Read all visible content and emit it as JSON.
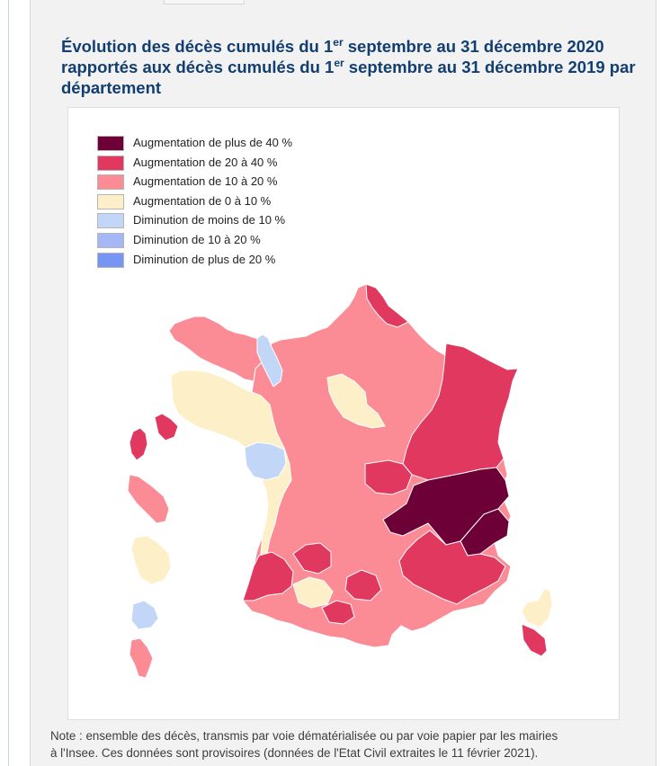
{
  "title": {
    "line1_a": "Évolution des décès cumulés du 1",
    "line1_sup": "er",
    "line1_b": " septembre au 31 décembre 2020",
    "line2_a": "rapportés aux décès cumulés du 1",
    "line2_sup": "er",
    "line2_b": " septembre au 31 décembre 2019 par",
    "line3": "département"
  },
  "legend": [
    {
      "label": "Augmentation de plus de 40 %",
      "color": "#6e0038"
    },
    {
      "label": "Augmentation de 20 à 40 %",
      "color": "#e0385f"
    },
    {
      "label": "Augmentation de 10 à 20 %",
      "color": "#fb8b95"
    },
    {
      "label": "Augmentation de 0 à 10 %",
      "color": "#fdf0c8"
    },
    {
      "label": "Diminution de moins de 10 %",
      "color": "#c2d6f8"
    },
    {
      "label": "Diminution de 10 à 20 %",
      "color": "#a6b7f5"
    },
    {
      "label": "Diminution de plus de 20 %",
      "color": "#7795f3"
    }
  ],
  "regions": [
    {
      "name": "metropole",
      "class": 2
    },
    {
      "name": "hauts-de-france-nord",
      "class": 1
    },
    {
      "name": "grand-est-est",
      "class": 1
    },
    {
      "name": "bourgogne-franche-comte",
      "class": 1
    },
    {
      "name": "auvergne-rhone-alpes-sillon",
      "class": 0
    },
    {
      "name": "alpes-nord",
      "class": 0
    },
    {
      "name": "ouest-atlantique",
      "class": 3
    },
    {
      "name": "centre-val-de-loire",
      "class": 3
    },
    {
      "name": "manche",
      "class": 4
    },
    {
      "name": "loire-atlantique",
      "class": 4
    },
    {
      "name": "pyrenees-atlantiques",
      "class": 1
    },
    {
      "name": "occitanie-ouest",
      "class": 1
    },
    {
      "name": "tarn-garonne",
      "class": 3
    },
    {
      "name": "aveyron-lozere",
      "class": 1
    },
    {
      "name": "paca",
      "class": 1
    },
    {
      "name": "corse",
      "class": 3
    },
    {
      "name": "corse-du-sud",
      "class": 1
    },
    {
      "name": "guadeloupe",
      "class": 1
    },
    {
      "name": "martinique",
      "class": 2
    },
    {
      "name": "guyane",
      "class": 3
    },
    {
      "name": "la-reunion",
      "class": 4
    },
    {
      "name": "mayotte",
      "class": 2
    }
  ],
  "note": {
    "line1": "Note : ensemble des décès, transmis par voie dématérialisée ou par voie papier par les mairies",
    "line2": "à l'Insee. Ces données sont provisoires (données de l'Etat Civil extraites le 11 février 2021)."
  }
}
